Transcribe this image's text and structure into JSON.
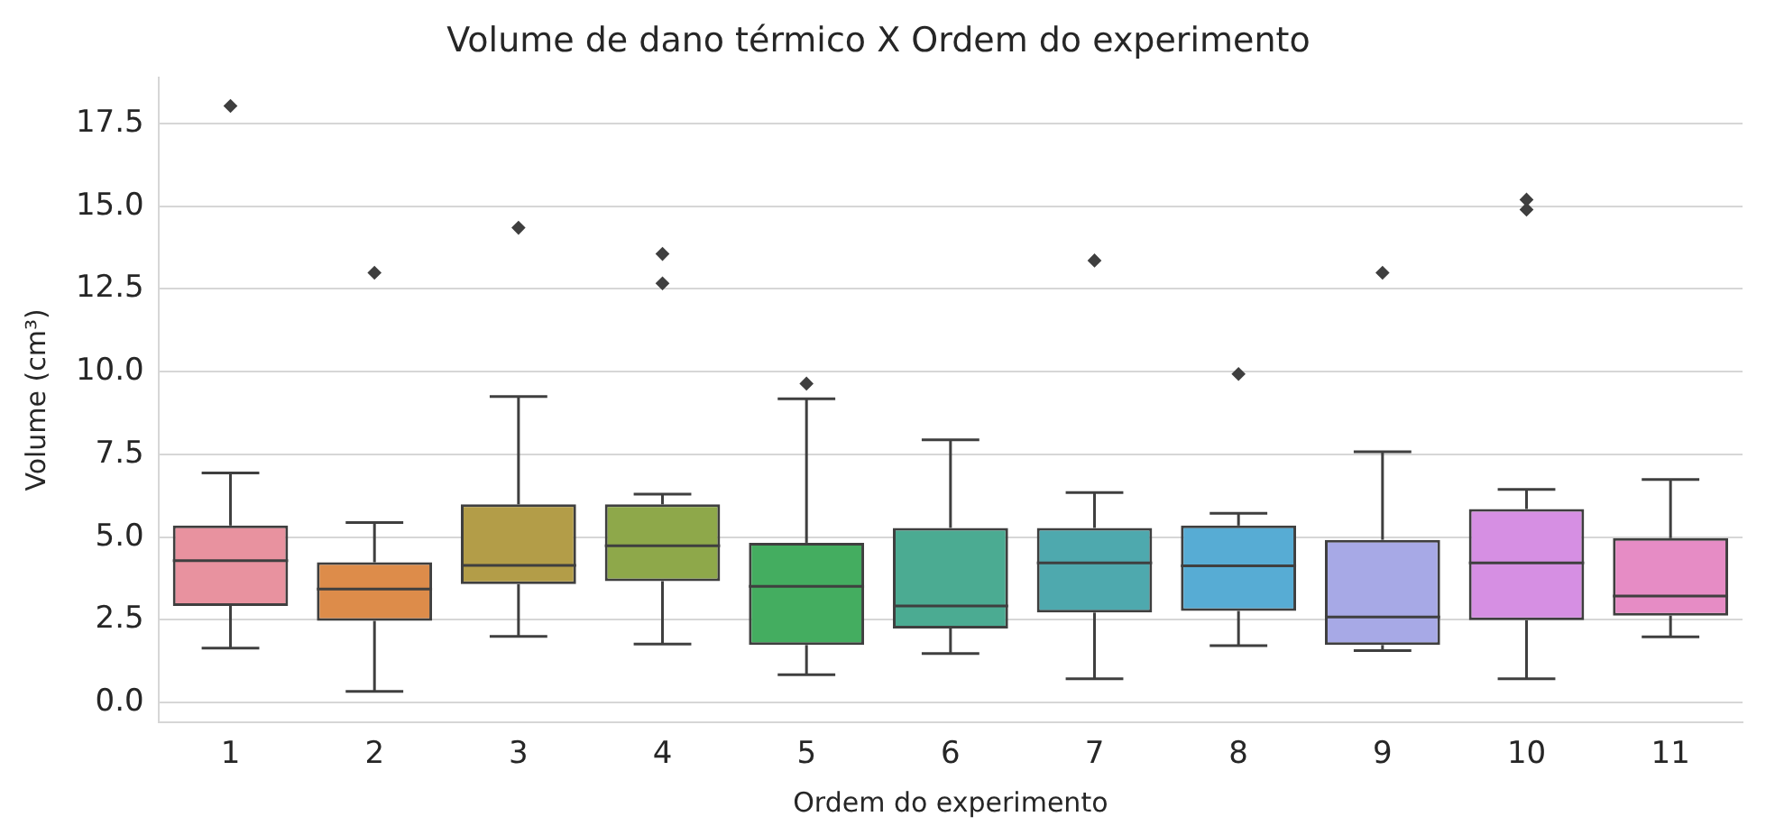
{
  "chart_data": {
    "type": "box",
    "title": "Volume de dano térmico X Ordem do experimento",
    "xlabel": "Ordem do experimento",
    "ylabel": "Volume (cm³)",
    "categories": [
      "1",
      "2",
      "3",
      "4",
      "5",
      "6",
      "7",
      "8",
      "9",
      "10",
      "11"
    ],
    "colors": [
      "#e8929f",
      "#dd8c4a",
      "#b39d48",
      "#8ea84a",
      "#44ad60",
      "#4bab92",
      "#4ea9ae",
      "#57acd4",
      "#a7a9e6",
      "#d68fe3",
      "#e68cc5"
    ],
    "boxes": [
      {
        "low": 1.65,
        "q1": 2.92,
        "median": 4.29,
        "q3": 5.35,
        "high": 6.94,
        "outliers": [
          18.03
        ]
      },
      {
        "low": 0.34,
        "q1": 2.47,
        "median": 3.43,
        "q3": 4.24,
        "high": 5.44,
        "outliers": [
          12.99
        ]
      },
      {
        "low": 2.0,
        "q1": 3.58,
        "median": 4.15,
        "q3": 5.99,
        "high": 9.25,
        "outliers": [
          14.35
        ]
      },
      {
        "low": 1.77,
        "q1": 3.67,
        "median": 4.74,
        "q3": 5.99,
        "high": 6.3,
        "outliers": [
          13.56,
          12.67
        ]
      },
      {
        "low": 0.84,
        "q1": 1.74,
        "median": 3.51,
        "q3": 4.83,
        "high": 9.18,
        "outliers": [
          9.64
        ]
      },
      {
        "low": 1.48,
        "q1": 2.24,
        "median": 2.92,
        "q3": 5.28,
        "high": 7.94
      },
      {
        "low": 0.72,
        "q1": 2.72,
        "median": 4.22,
        "q3": 5.28,
        "high": 6.35,
        "outliers": [
          13.36
        ]
      },
      {
        "low": 1.72,
        "q1": 2.77,
        "median": 4.13,
        "q3": 5.35,
        "high": 5.72,
        "outliers": [
          9.93
        ]
      },
      {
        "low": 1.57,
        "q1": 1.74,
        "median": 2.59,
        "q3": 4.92,
        "high": 7.58,
        "outliers": [
          12.99
        ]
      },
      {
        "low": 0.72,
        "q1": 2.49,
        "median": 4.22,
        "q3": 5.85,
        "high": 6.44,
        "outliers": [
          15.2,
          14.9
        ]
      },
      {
        "low": 1.99,
        "q1": 2.63,
        "median": 3.22,
        "q3": 4.97,
        "high": 6.74
      }
    ],
    "ylim": [
      -0.6,
      18.9
    ],
    "yticks": [
      {
        "value": 0,
        "label": "0.0"
      },
      {
        "value": 2.5,
        "label": "2.5"
      },
      {
        "value": 5,
        "label": "5.0"
      },
      {
        "value": 7.5,
        "label": "7.5"
      },
      {
        "value": 10,
        "label": "10.0"
      },
      {
        "value": 12.5,
        "label": "12.5"
      },
      {
        "value": 15,
        "label": "15.0"
      },
      {
        "value": 17.5,
        "label": "17.5"
      }
    ],
    "grid": "y",
    "marker": "diamond"
  }
}
